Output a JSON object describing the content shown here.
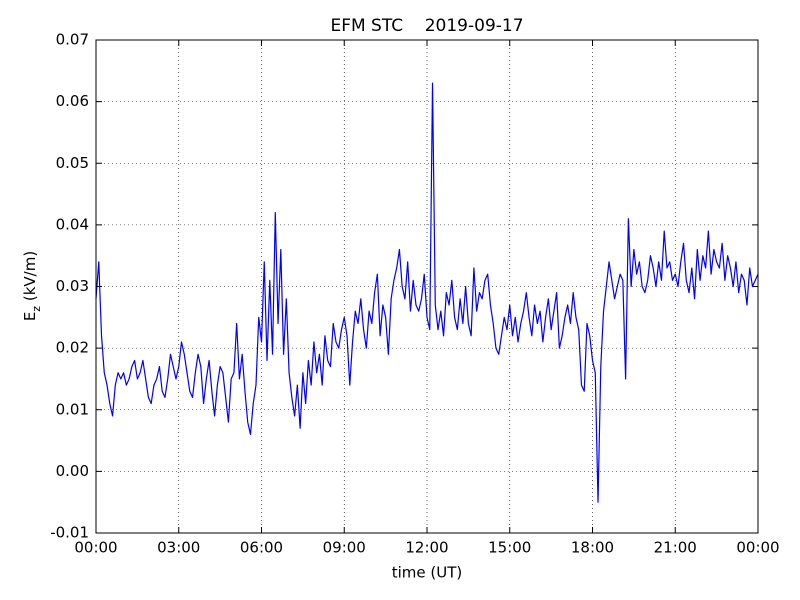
{
  "chart_data": {
    "type": "line",
    "title": "EFM STC    2019-09-17",
    "xlabel": "time (UT)",
    "ylabel": {
      "base": "E",
      "sub": "z",
      "rest": " (kV/m)"
    },
    "color": "#0000ff",
    "grid": true,
    "xlim": [
      0,
      24
    ],
    "xticks": [
      {
        "value": 0,
        "label": "00:00"
      },
      {
        "value": 3,
        "label": "03:00"
      },
      {
        "value": 6,
        "label": "06:00"
      },
      {
        "value": 9,
        "label": "09:00"
      },
      {
        "value": 12,
        "label": "12:00"
      },
      {
        "value": 15,
        "label": "15:00"
      },
      {
        "value": 18,
        "label": "18:00"
      },
      {
        "value": 21,
        "label": "21:00"
      },
      {
        "value": 24,
        "label": "00:00"
      }
    ],
    "ylim": [
      -0.01,
      0.07
    ],
    "yticks": [
      -0.01,
      {
        "value": 0,
        "label": "0.00"
      },
      0.01,
      0.02,
      0.03,
      0.04,
      0.05,
      0.06,
      0.07
    ],
    "x": [
      0,
      0.1,
      0.2,
      0.3,
      0.4,
      0.5,
      0.6,
      0.7,
      0.8,
      0.9,
      1,
      1.1,
      1.2,
      1.3,
      1.4,
      1.5,
      1.6,
      1.7,
      1.8,
      1.9,
      2,
      2.1,
      2.2,
      2.3,
      2.4,
      2.5,
      2.6,
      2.7,
      2.8,
      2.9,
      3,
      3.1,
      3.2,
      3.3,
      3.4,
      3.5,
      3.6,
      3.7,
      3.8,
      3.9,
      4,
      4.1,
      4.2,
      4.3,
      4.4,
      4.5,
      4.6,
      4.7,
      4.8,
      4.9,
      5,
      5.1,
      5.2,
      5.3,
      5.4,
      5.5,
      5.6,
      5.7,
      5.8,
      5.9,
      6,
      6.1,
      6.2,
      6.3,
      6.4,
      6.5,
      6.6,
      6.7,
      6.8,
      6.9,
      7,
      7.1,
      7.2,
      7.3,
      7.4,
      7.5,
      7.6,
      7.7,
      7.8,
      7.9,
      8,
      8.1,
      8.2,
      8.3,
      8.4,
      8.5,
      8.6,
      8.7,
      8.8,
      8.9,
      9,
      9.1,
      9.2,
      9.3,
      9.4,
      9.5,
      9.6,
      9.7,
      9.8,
      9.9,
      10,
      10.1,
      10.2,
      10.3,
      10.4,
      10.5,
      10.6,
      10.7,
      10.8,
      10.9,
      11,
      11.1,
      11.2,
      11.3,
      11.4,
      11.5,
      11.6,
      11.7,
      11.8,
      11.9,
      12,
      12.1,
      12.2,
      12.3,
      12.4,
      12.5,
      12.6,
      12.7,
      12.8,
      12.9,
      13,
      13.1,
      13.2,
      13.3,
      13.4,
      13.5,
      13.6,
      13.7,
      13.8,
      13.9,
      14,
      14.1,
      14.2,
      14.3,
      14.4,
      14.5,
      14.6,
      14.7,
      14.8,
      14.9,
      15,
      15.1,
      15.2,
      15.3,
      15.4,
      15.5,
      15.6,
      15.7,
      15.8,
      15.9,
      16,
      16.1,
      16.2,
      16.3,
      16.4,
      16.5,
      16.6,
      16.7,
      16.8,
      16.9,
      17,
      17.1,
      17.2,
      17.3,
      17.4,
      17.5,
      17.6,
      17.7,
      17.8,
      17.9,
      18,
      18.1,
      18.2,
      18.3,
      18.4,
      18.5,
      18.6,
      18.7,
      18.8,
      18.9,
      19,
      19.1,
      19.2,
      19.3,
      19.4,
      19.5,
      19.6,
      19.7,
      19.8,
      19.9,
      20,
      20.1,
      20.2,
      20.3,
      20.4,
      20.5,
      20.6,
      20.7,
      20.8,
      20.9,
      21,
      21.1,
      21.2,
      21.3,
      21.4,
      21.5,
      21.6,
      21.7,
      21.8,
      21.9,
      22,
      22.1,
      22.2,
      22.3,
      22.4,
      22.5,
      22.6,
      22.7,
      22.8,
      22.9,
      23,
      23.1,
      23.2,
      23.3,
      23.4,
      23.5,
      23.6,
      23.7,
      23.8,
      23.9,
      24
    ],
    "values": [
      0.028,
      0.034,
      0.022,
      0.016,
      0.014,
      0.011,
      0.009,
      0.014,
      0.016,
      0.015,
      0.016,
      0.014,
      0.015,
      0.017,
      0.018,
      0.015,
      0.016,
      0.018,
      0.015,
      0.012,
      0.011,
      0.014,
      0.015,
      0.017,
      0.013,
      0.012,
      0.015,
      0.019,
      0.017,
      0.015,
      0.017,
      0.021,
      0.019,
      0.016,
      0.013,
      0.012,
      0.016,
      0.019,
      0.017,
      0.011,
      0.015,
      0.018,
      0.013,
      0.009,
      0.014,
      0.017,
      0.016,
      0.012,
      0.008,
      0.015,
      0.016,
      0.024,
      0.015,
      0.019,
      0.013,
      0.008,
      0.006,
      0.011,
      0.014,
      0.025,
      0.021,
      0.034,
      0.018,
      0.031,
      0.019,
      0.042,
      0.024,
      0.036,
      0.019,
      0.028,
      0.016,
      0.012,
      0.009,
      0.014,
      0.007,
      0.016,
      0.011,
      0.018,
      0.014,
      0.021,
      0.016,
      0.019,
      0.014,
      0.022,
      0.018,
      0.017,
      0.024,
      0.021,
      0.02,
      0.023,
      0.025,
      0.022,
      0.014,
      0.021,
      0.026,
      0.024,
      0.028,
      0.023,
      0.02,
      0.026,
      0.024,
      0.029,
      0.032,
      0.022,
      0.027,
      0.025,
      0.019,
      0.028,
      0.031,
      0.033,
      0.036,
      0.03,
      0.028,
      0.034,
      0.026,
      0.031,
      0.027,
      0.026,
      0.028,
      0.032,
      0.025,
      0.023,
      0.063,
      0.027,
      0.023,
      0.026,
      0.022,
      0.029,
      0.027,
      0.031,
      0.025,
      0.023,
      0.028,
      0.024,
      0.03,
      0.024,
      0.022,
      0.033,
      0.026,
      0.029,
      0.028,
      0.031,
      0.032,
      0.027,
      0.024,
      0.02,
      0.019,
      0.022,
      0.025,
      0.023,
      0.027,
      0.022,
      0.025,
      0.021,
      0.024,
      0.026,
      0.029,
      0.025,
      0.022,
      0.027,
      0.024,
      0.026,
      0.021,
      0.025,
      0.028,
      0.023,
      0.026,
      0.029,
      0.02,
      0.022,
      0.025,
      0.027,
      0.024,
      0.029,
      0.025,
      0.023,
      0.014,
      0.013,
      0.024,
      0.022,
      0.018,
      0.016,
      -0.005,
      0.017,
      0.026,
      0.03,
      0.034,
      0.031,
      0.028,
      0.03,
      0.032,
      0.031,
      0.015,
      0.041,
      0.03,
      0.036,
      0.032,
      0.034,
      0.03,
      0.029,
      0.031,
      0.035,
      0.033,
      0.03,
      0.034,
      0.031,
      0.039,
      0.033,
      0.034,
      0.031,
      0.032,
      0.03,
      0.034,
      0.037,
      0.031,
      0.029,
      0.033,
      0.028,
      0.036,
      0.031,
      0.035,
      0.033,
      0.039,
      0.032,
      0.036,
      0.034,
      0.033,
      0.037,
      0.031,
      0.035,
      0.033,
      0.03,
      0.034,
      0.029,
      0.032,
      0.031,
      0.027,
      0.033,
      0.03,
      0.031,
      0.032
    ]
  }
}
